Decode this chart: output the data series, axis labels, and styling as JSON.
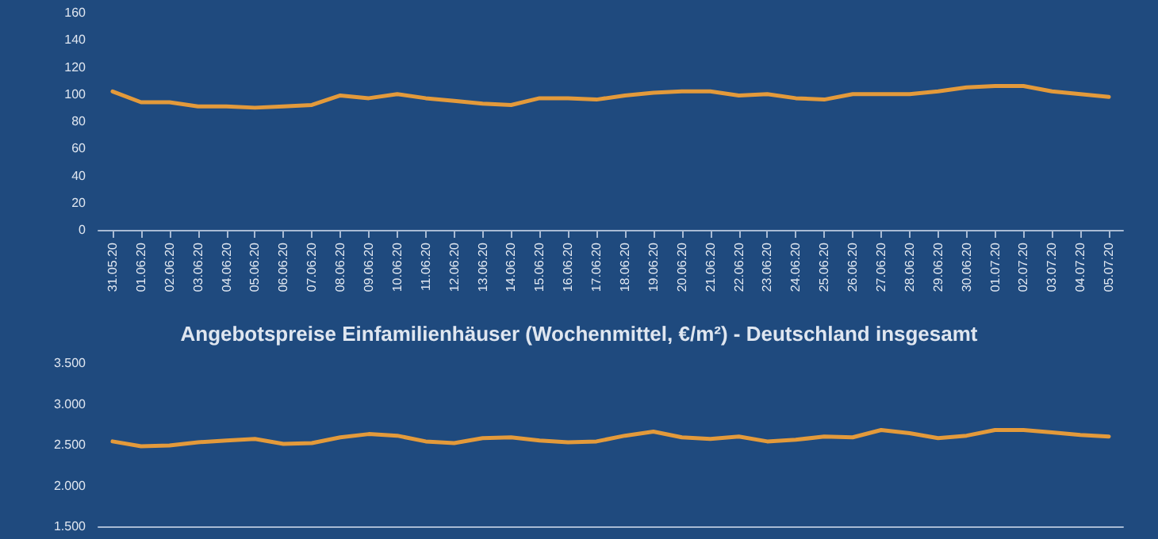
{
  "chart_data": [
    {
      "type": "line",
      "categories": [
        "31.05.20",
        "01.06.20",
        "02.06.20",
        "03.06.20",
        "04.06.20",
        "05.06.20",
        "06.06.20",
        "07.06.20",
        "08.06.20",
        "09.06.20",
        "10.06.20",
        "11.06.20",
        "12.06.20",
        "13.06.20",
        "14.06.20",
        "15.06.20",
        "16.06.20",
        "17.06.20",
        "18.06.20",
        "19.06.20",
        "20.06.20",
        "21.06.20",
        "22.06.20",
        "23.06.20",
        "24.06.20",
        "25.06.20",
        "26.06.20",
        "27.06.20",
        "28.06.20",
        "29.06.20",
        "30.06.20",
        "01.07.20",
        "02.07.20",
        "03.07.20",
        "04.07.20",
        "05.07.20"
      ],
      "series": [
        {
          "color": "#e39a3b",
          "values": [
            102,
            94,
            94,
            91,
            91,
            90,
            91,
            92,
            99,
            97,
            100,
            97,
            95,
            93,
            92,
            97,
            97,
            96,
            99,
            101,
            102,
            102,
            99,
            100,
            97,
            96,
            100,
            100,
            100,
            102,
            105,
            106,
            106,
            102,
            100,
            98
          ]
        }
      ],
      "ylim": [
        0,
        160
      ],
      "yticks": [
        0,
        20,
        40,
        60,
        80,
        100,
        120,
        140,
        160
      ],
      "grid": false,
      "marker": "none",
      "line_style": "solid"
    },
    {
      "type": "line",
      "title": "Angebotspreise Einfamilienhäuser (Wochenmittel, €/m²) - Deutschland insgesamt",
      "categories": [
        null,
        null,
        null,
        null,
        null,
        null,
        null,
        null,
        null,
        null,
        null,
        null,
        null,
        null,
        null,
        null,
        null,
        null,
        null,
        null,
        null,
        null,
        null,
        null,
        null,
        null,
        null,
        null,
        null,
        null,
        null,
        null,
        null,
        null,
        null,
        null
      ],
      "series": [
        {
          "color": "#e39a3b",
          "values": [
            2540,
            2480,
            2490,
            2530,
            2550,
            2570,
            2510,
            2520,
            2590,
            2630,
            2610,
            2540,
            2520,
            2580,
            2590,
            2550,
            2530,
            2540,
            2610,
            2660,
            2590,
            2570,
            2600,
            2540,
            2560,
            2600,
            2590,
            2680,
            2640,
            2580,
            2610,
            2680,
            2680,
            2650,
            2620,
            2600
          ]
        }
      ],
      "ylim": [
        1500,
        3500
      ],
      "yticks": [
        {
          "value": 1500,
          "label": "1.500"
        },
        {
          "value": 2000,
          "label": "2.000"
        },
        {
          "value": 2500,
          "label": "2.500"
        },
        {
          "value": 3000,
          "label": "3.000"
        },
        {
          "value": 3500,
          "label": "3.500"
        }
      ],
      "tick_labels": "y",
      "grid": false,
      "marker": "none",
      "line_style": "solid"
    }
  ]
}
